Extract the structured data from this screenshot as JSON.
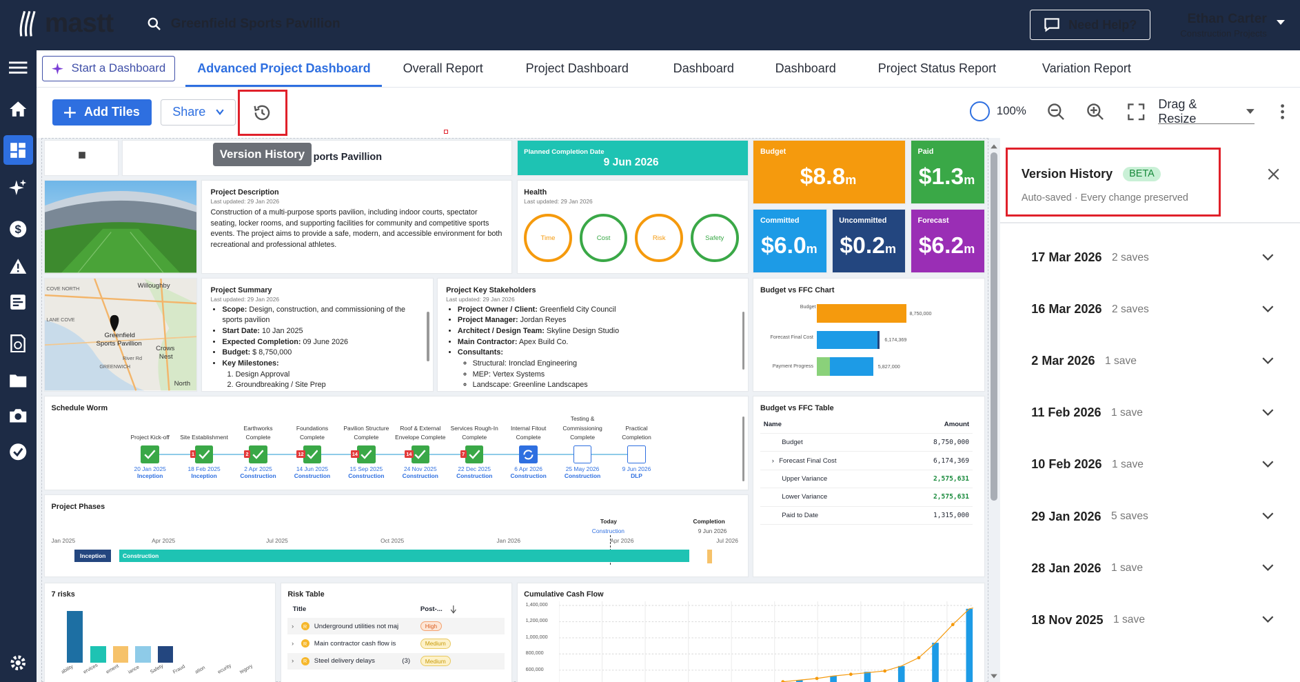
{
  "app": {
    "logo": "mastt",
    "project": "Greenfield Sports Pavillion",
    "help": "Need Help?",
    "user_name": "Ethan Carter",
    "user_role": "Construction Projects"
  },
  "tabs": {
    "start": "Start a Dashboard",
    "items": [
      "Advanced Project Dashboard",
      "Overall Report",
      "Project Dashboard",
      "Dashboard",
      "Dashboard",
      "Project Status Report",
      "Variation Report"
    ]
  },
  "toolbar": {
    "add_tiles": "Add Tiles",
    "share": "Share",
    "zoom": "100%",
    "mode": "Drag & Resize",
    "tooltip": "Version History"
  },
  "tiles": {
    "title_partial": "ports Pavillion",
    "completion": {
      "label": "Planned Completion Date",
      "value": "9 Jun 2026"
    },
    "kpis": [
      {
        "label": "Budget",
        "value": "$8.8",
        "unit": "m",
        "color": "#f59a0d"
      },
      {
        "label": "Paid",
        "value": "$1.3",
        "unit": "m",
        "color": "#3aa847"
      },
      {
        "label": "Committed",
        "value": "$6.0",
        "unit": "m",
        "color": "#1d9be6"
      },
      {
        "label": "Uncommitted",
        "value": "$0.2",
        "unit": "m",
        "color": "#23467f"
      },
      {
        "label": "Forecast",
        "value": "$6.2",
        "unit": "m",
        "color": "#9a2eb5"
      }
    ],
    "description": {
      "title": "Project Description",
      "updated": "Last updated: 29 Jan 2026",
      "text": "Construction of a multi-purpose sports pavilion, including indoor courts, spectator seating, locker rooms, and supporting facilities for community and competitive sports events. The project aims to provide a safe, modern, and accessible environment for both recreational and professional athletes."
    },
    "health": {
      "title": "Health",
      "updated": "Last updated: 29 Jan 2026",
      "items": [
        {
          "label": "Time",
          "color": "#f59a0d"
        },
        {
          "label": "Cost",
          "color": "#3aa847"
        },
        {
          "label": "Risk",
          "color": "#f59a0d"
        },
        {
          "label": "Safety",
          "color": "#3aa847"
        }
      ]
    },
    "map": {
      "labels": [
        "COVE NORTH",
        "Willoughby",
        "LANE COVE",
        "Greenfield",
        "Sports Pavillion",
        "River Rd",
        "Crows",
        "Nest",
        "GREENWICH",
        "North"
      ]
    },
    "summary": {
      "title": "Project Summary",
      "updated": "Last updated: 29 Jan 2026",
      "scope_k": "Scope:",
      "scope": " Design, construction, and commissioning of the sports pavilion",
      "start_k": "Start Date:",
      "start": " 10 Jan 2025",
      "exp_k": "Expected Completion:",
      "exp": " 09 June 2026",
      "budget_k": "Budget:",
      "budget": " $ 8,750,000",
      "ms_k": "Key Milestones:",
      "ms1": "Design Approval",
      "ms2": "Groundbreaking / Site Prep"
    },
    "stakeholders": {
      "title": "Project Key Stakeholders",
      "updated": "Last updated: 29 Jan 2026",
      "items": [
        {
          "k": "Project Owner / Client:",
          "v": " Greenfield City Council"
        },
        {
          "k": "Project Manager:",
          "v": " Jordan Reyes"
        },
        {
          "k": "Architect / Design Team:",
          "v": " Skyline Design Studio"
        },
        {
          "k": "Main Contractor:",
          "v": " Apex Build Co."
        },
        {
          "k": "Consultants:",
          "v": ""
        }
      ],
      "consultants": [
        "Structural: Ironclad Engineering",
        "MEP: Vertex Systems",
        "Landscape: Greenline Landscapes"
      ]
    },
    "ffc_chart": {
      "title": "Budget vs FFC Chart",
      "rows": [
        {
          "label": "Budget",
          "value": "8,750,000"
        },
        {
          "label": "Forecast Final Cost",
          "value": "6,174,369"
        },
        {
          "label": "Payment Progress",
          "value": "5,827,000"
        }
      ]
    },
    "worm": {
      "title": "Schedule Worm",
      "milestones": [
        {
          "name": "Project Kick-off",
          "date": "20 Jan 2025",
          "phase": "Inception",
          "status": "done",
          "delay": ""
        },
        {
          "name": "Site Establishment",
          "date": "18 Feb 2025",
          "phase": "Inception",
          "status": "done",
          "delay": "1"
        },
        {
          "name": "Earthworks Complete",
          "date": "2 Apr 2025",
          "phase": "Construction",
          "status": "done",
          "delay": "2"
        },
        {
          "name": "Foundations Complete",
          "date": "14 Jun 2025",
          "phase": "Construction",
          "status": "done",
          "delay": "12"
        },
        {
          "name": "Pavilion Structure Complete",
          "date": "15 Sep 2025",
          "phase": "Construction",
          "status": "done",
          "delay": "14"
        },
        {
          "name": "Roof & External Envelope Complete",
          "date": "24 Nov 2025",
          "phase": "Construction",
          "status": "done",
          "delay": "14"
        },
        {
          "name": "Services Rough-In Complete",
          "date": "22 Dec 2025",
          "phase": "Construction",
          "status": "done",
          "delay": "7"
        },
        {
          "name": "Internal Fitout Complete",
          "date": "6 Apr 2026",
          "phase": "Construction",
          "status": "progress",
          "delay": ""
        },
        {
          "name": "Testing & Commissioning Complete",
          "date": "25 May 2026",
          "phase": "Construction",
          "status": "todo",
          "delay": ""
        },
        {
          "name": "Practical Completion",
          "date": "9 Jun 2026",
          "phase": "DLP",
          "status": "todo",
          "delay": ""
        }
      ]
    },
    "ffc_table": {
      "title": "Budget vs FFC Table",
      "col_name": "Name",
      "col_amount": "Amount",
      "rows": [
        {
          "name": "Budget",
          "amount": "8,750,000",
          "green": false
        },
        {
          "name": "Forecast Final Cost",
          "amount": "6,174,369",
          "green": false
        },
        {
          "name": "Upper Variance",
          "amount": "2,575,631",
          "green": true
        },
        {
          "name": "Lower Variance",
          "amount": "2,575,631",
          "green": true
        },
        {
          "name": "Paid to Date",
          "amount": "1,315,000",
          "green": false
        }
      ]
    },
    "phases": {
      "title": "Project Phases",
      "ticks": [
        "Jan 2025",
        "Apr 2025",
        "Jul 2025",
        "Oct 2025",
        "Jan 2026",
        "Apr 2026",
        "Jul 2026"
      ],
      "today": "Today",
      "today_phase": "Construction",
      "completion": "Completion",
      "completion_date": "9 Jun 2026",
      "bars": [
        "Inception",
        "Construction"
      ]
    },
    "risks": {
      "title": "7 risks",
      "cats": [
        "ability",
        "ervices",
        "ement",
        "iance",
        "Safety",
        "Fraud",
        "ation",
        "ecurity",
        "tegory"
      ]
    },
    "risk_table": {
      "title": "Risk Table",
      "col_title": "Title",
      "col_post": "Post-...",
      "rows": [
        {
          "title": "Underground utilities not maj",
          "level": "High"
        },
        {
          "title": "Main contractor cash flow is",
          "level": "Medium"
        },
        {
          "title": "Steel delivery delays",
          "count": "(3)",
          "level": "Medium"
        }
      ]
    },
    "cashflow": {
      "title": "Cumulative Cash Flow",
      "yticks": [
        "1,400,000",
        "1,200,000",
        "1,000,000",
        "800,000",
        "600,000"
      ]
    }
  },
  "version_history": {
    "title": "Version History",
    "badge": "BETA",
    "subtitle": "Auto-saved · Every change preserved",
    "entries": [
      {
        "date": "17 Mar 2026",
        "saves": "2 saves"
      },
      {
        "date": "16 Mar 2026",
        "saves": "2 saves"
      },
      {
        "date": "2 Mar 2026",
        "saves": "1 save"
      },
      {
        "date": "11 Feb 2026",
        "saves": "1 save"
      },
      {
        "date": "10 Feb 2026",
        "saves": "1 save"
      },
      {
        "date": "29 Jan 2026",
        "saves": "5 saves"
      },
      {
        "date": "28 Jan 2026",
        "saves": "1 save"
      },
      {
        "date": "18 Nov 2025",
        "saves": "1 save"
      }
    ]
  }
}
